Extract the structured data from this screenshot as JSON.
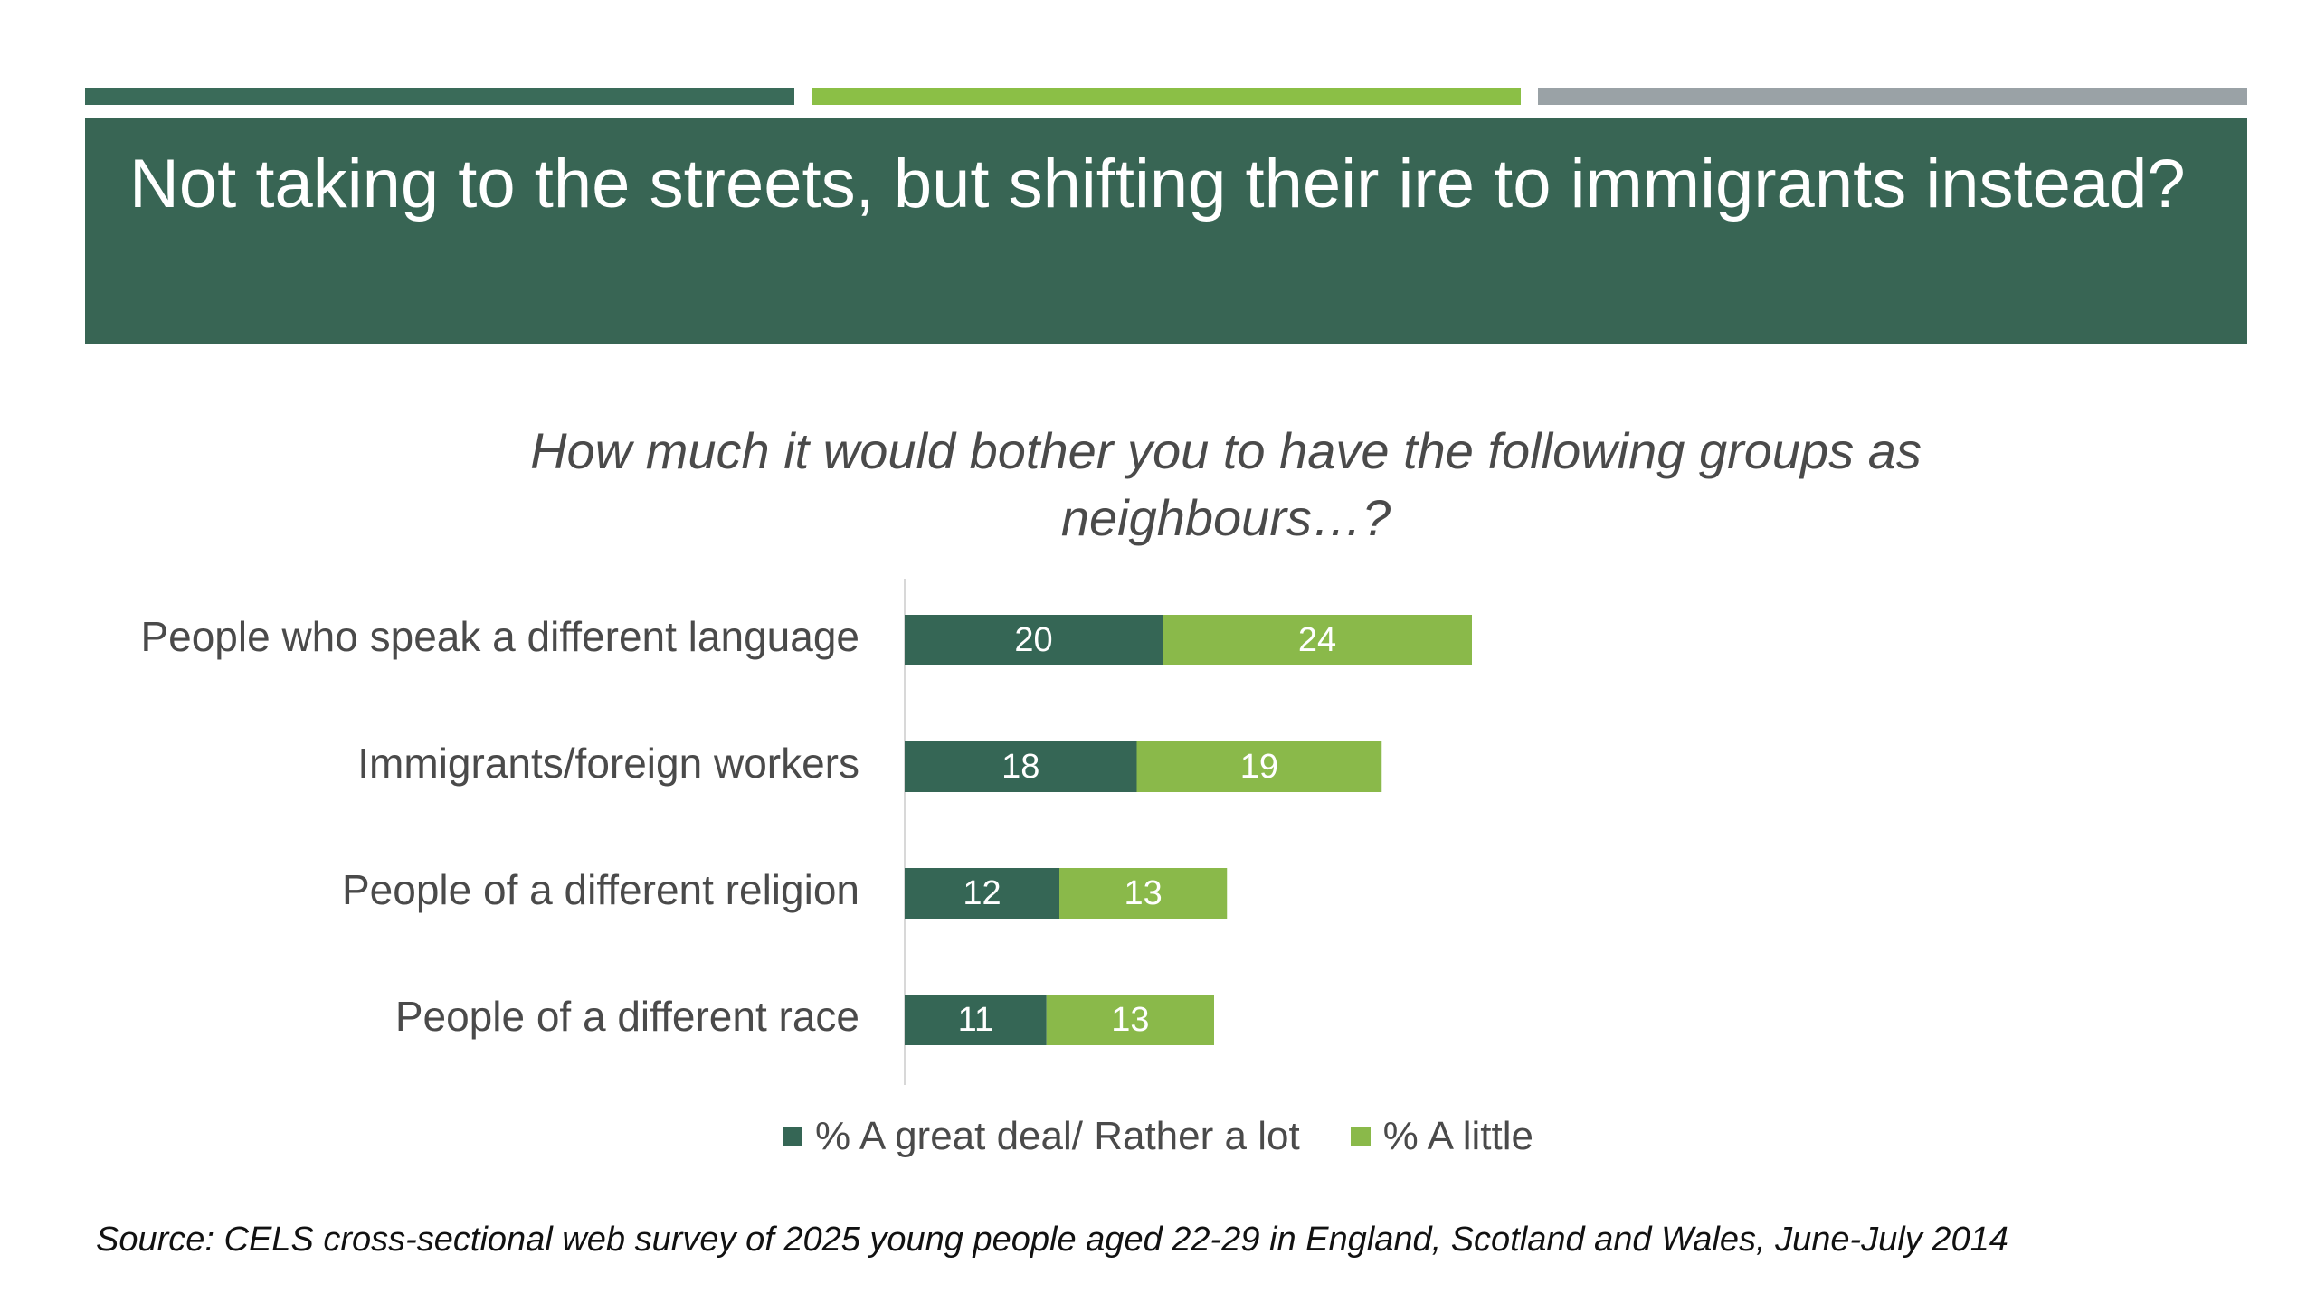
{
  "colors": {
    "accent_1": "#3a6b59",
    "accent_2": "#8bbf46",
    "accent_3": "#9aa2a6",
    "banner": "#386554",
    "series_dark": "#356655",
    "series_light": "#8ab94a",
    "axis": "#d8d8d8"
  },
  "slide": {
    "title": "Not taking to the streets, but shifting their ire to immigrants instead?"
  },
  "chart_data": {
    "type": "bar",
    "orientation": "horizontal",
    "stacked": true,
    "title": "How much it would bother you to have the following groups as neighbours…?",
    "categories": [
      "People who speak a different language",
      "Immigrants/foreign workers",
      "People of a different religion",
      "People of a different race"
    ],
    "series": [
      {
        "name": "% A great deal/ Rather a lot",
        "values": [
          20,
          18,
          12,
          11
        ],
        "color": "#356655"
      },
      {
        "name": "% A little",
        "values": [
          24,
          19,
          13,
          13
        ],
        "color": "#8ab94a"
      }
    ],
    "data_labels": true,
    "xlim": [
      0,
      100
    ],
    "grid": false,
    "legend": "bottom"
  },
  "source": "Source: CELS cross-sectional web survey of 2025 young people aged 22-29 in England, Scotland and Wales, June-July 2014"
}
